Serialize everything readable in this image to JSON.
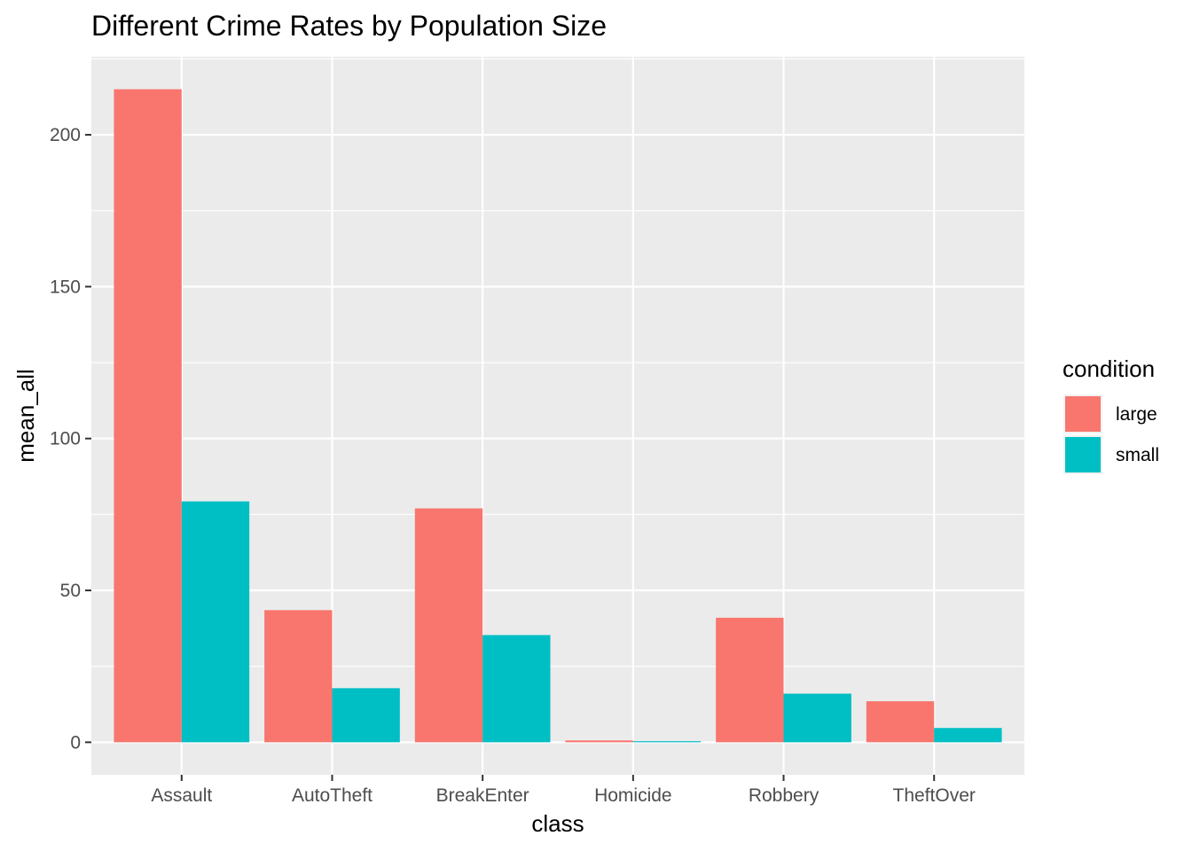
{
  "chart_data": {
    "type": "bar",
    "title": "Different Crime Rates by Population Size",
    "xlabel": "class",
    "ylabel": "mean_all",
    "categories": [
      "Assault",
      "AutoTheft",
      "BreakEnter",
      "Homicide",
      "Robbery",
      "TheftOver"
    ],
    "series": [
      {
        "name": "large",
        "color": "#F8766D",
        "values": [
          215,
          43.5,
          77,
          0.6,
          41,
          13.5
        ]
      },
      {
        "name": "small",
        "color": "#00BFC4",
        "values": [
          79.3,
          17.8,
          35.3,
          0.35,
          16,
          4.7
        ]
      }
    ],
    "ylim": [
      -10.7,
      225.7
    ],
    "yticks": [
      0,
      50,
      100,
      150,
      200
    ],
    "grid": true,
    "legend": {
      "title": "condition",
      "position": "right"
    },
    "colors": {
      "panel": "#EBEBEB",
      "grid": "#FFFFFF"
    }
  }
}
